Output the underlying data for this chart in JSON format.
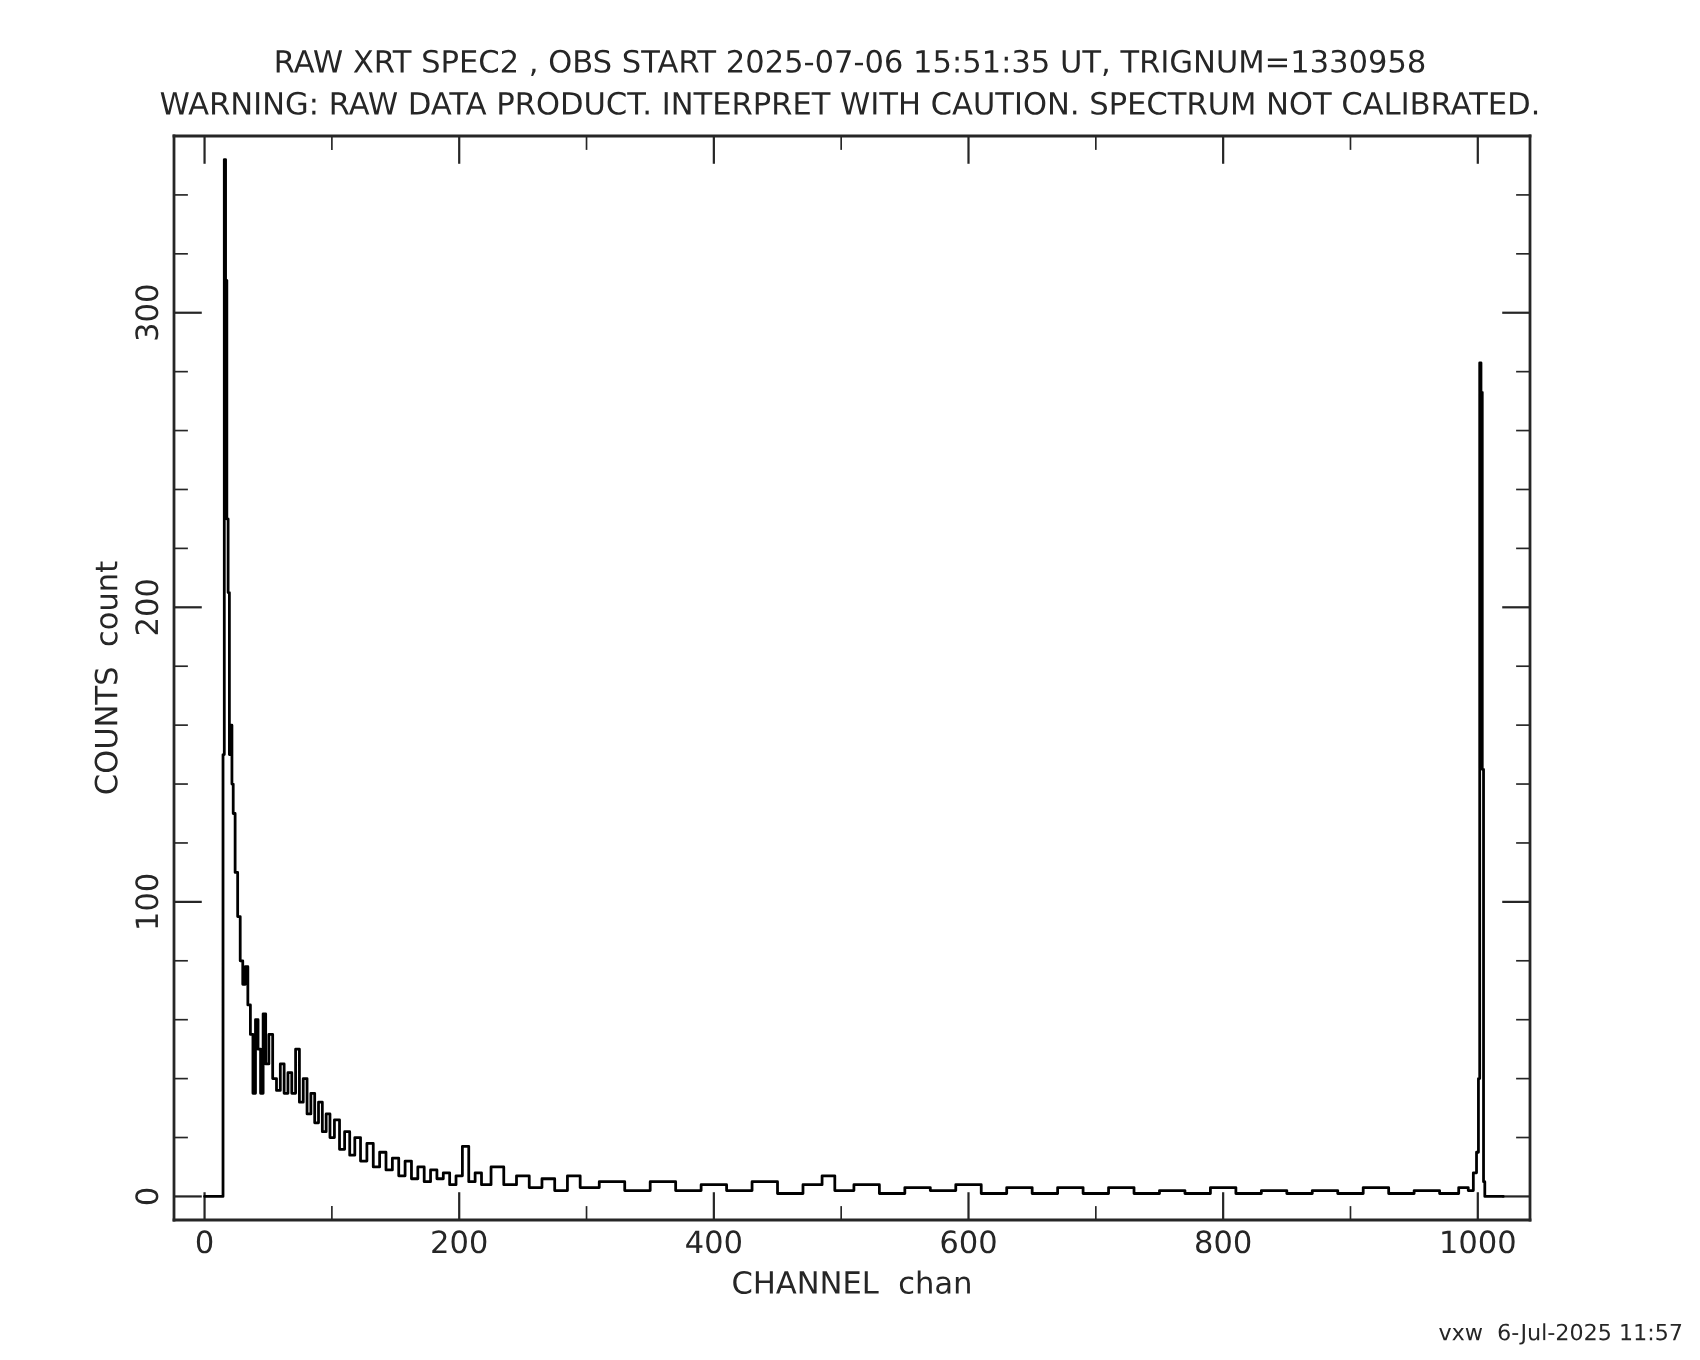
{
  "chart_data": {
    "type": "step",
    "title": "RAW XRT SPEC2 , OBS START 2025-07-06 15:51:35 UT, TRIGNUM=1330958",
    "subtitle": "WARNING: RAW DATA PRODUCT. INTERPRET WITH CAUTION. SPECTRUM NOT CALIBRATED.",
    "xlabel": "CHANNEL  chan",
    "ylabel": "COUNTS  count",
    "annotations": [
      "vxw  6-Jul-2025 11:57"
    ],
    "series": [
      {
        "color": "#000000",
        "x": [
          0,
          14,
          15,
          16,
          17,
          18,
          19,
          20,
          21,
          22,
          23,
          25,
          27,
          29,
          31,
          33,
          35,
          37,
          39,
          41,
          43,
          45,
          47,
          49,
          52,
          55,
          58,
          61,
          64,
          67,
          70,
          73,
          76,
          79,
          82,
          85,
          88,
          91,
          94,
          97,
          100,
          104,
          108,
          112,
          116,
          120,
          125,
          130,
          135,
          140,
          145,
          150,
          155,
          160,
          165,
          170,
          175,
          180,
          185,
          190,
          195,
          200,
          205,
          210,
          215,
          220,
          230,
          240,
          250,
          260,
          270,
          280,
          290,
          300,
          320,
          340,
          360,
          380,
          400,
          420,
          440,
          460,
          480,
          490,
          500,
          520,
          540,
          560,
          580,
          600,
          620,
          640,
          660,
          680,
          700,
          720,
          740,
          760,
          780,
          800,
          820,
          840,
          860,
          880,
          900,
          920,
          940,
          960,
          980,
          990,
          995,
          998,
          1000,
          1001,
          1002,
          1003,
          1004,
          1005,
          1006,
          1020
        ],
        "values": [
          0,
          0,
          150,
          352,
          311,
          230,
          205,
          150,
          160,
          140,
          130,
          110,
          95,
          80,
          72,
          78,
          65,
          55,
          35,
          60,
          50,
          35,
          62,
          45,
          55,
          40,
          36,
          45,
          35,
          42,
          35,
          50,
          32,
          40,
          28,
          35,
          25,
          32,
          22,
          28,
          20,
          26,
          16,
          22,
          14,
          20,
          12,
          18,
          10,
          15,
          9,
          13,
          7,
          12,
          6,
          10,
          5,
          9,
          6,
          8,
          4,
          7,
          17,
          5,
          8,
          4,
          10,
          4,
          7,
          3,
          6,
          2,
          7,
          3,
          5,
          2,
          5,
          2,
          4,
          2,
          5,
          1,
          4,
          7,
          2,
          4,
          1,
          3,
          2,
          4,
          1,
          3,
          1,
          3,
          1,
          3,
          1,
          2,
          1,
          3,
          1,
          2,
          1,
          2,
          1,
          3,
          1,
          2,
          1,
          3,
          2,
          8,
          15,
          40,
          283,
          273,
          145,
          5,
          0,
          0
        ]
      }
    ],
    "xlim": [
      -24,
      1041
    ],
    "ylim": [
      -8,
      360
    ],
    "xticks": [
      0,
      {
        "value": 100,
        "label": null
      },
      200,
      {
        "value": 300,
        "label": null
      },
      400,
      {
        "value": 500,
        "label": null
      },
      600,
      {
        "value": 700,
        "label": null
      },
      800,
      {
        "value": 900,
        "label": null
      },
      1000
    ],
    "yticks": [
      0,
      {
        "value": 20,
        "label": null
      },
      {
        "value": 40,
        "label": null
      },
      {
        "value": 60,
        "label": null
      },
      {
        "value": 80,
        "label": null
      },
      100,
      {
        "value": 120,
        "label": null
      },
      {
        "value": 140,
        "label": null
      },
      {
        "value": 160,
        "label": null
      },
      {
        "value": 180,
        "label": null
      },
      200,
      {
        "value": 220,
        "label": null
      },
      {
        "value": 240,
        "label": null
      },
      {
        "value": 260,
        "label": null
      },
      {
        "value": 280,
        "label": null
      },
      300,
      {
        "value": 320,
        "label": null
      },
      {
        "value": 340,
        "label": null
      }
    ],
    "grid": false,
    "legend": false
  }
}
